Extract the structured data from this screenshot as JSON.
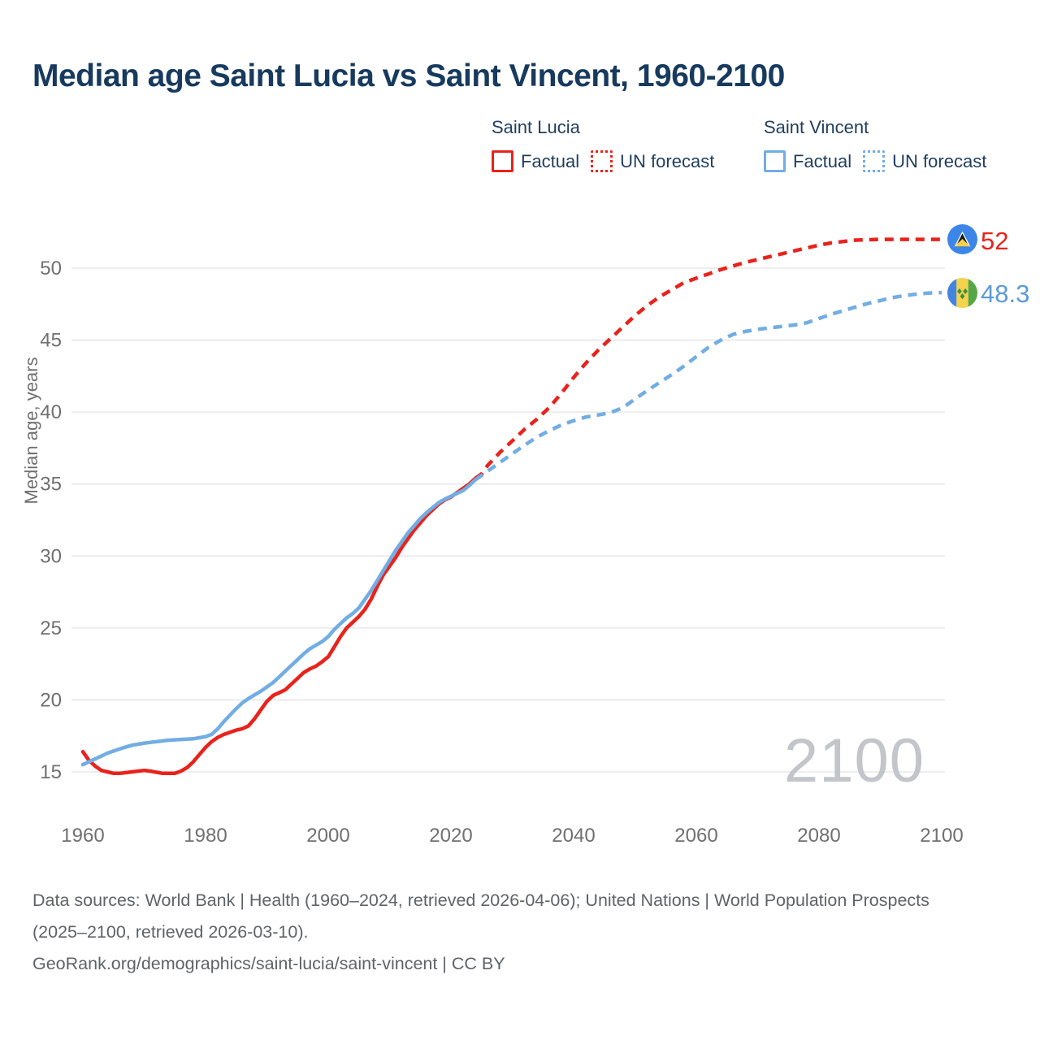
{
  "header": {
    "title": "Median age Saint Lucia vs Saint Vincent, 1960-2100"
  },
  "legend": {
    "groups": [
      {
        "label": "Saint Lucia",
        "color": "#e8231c",
        "items": [
          {
            "label": "Factual",
            "style": "solid"
          },
          {
            "label": "UN forecast",
            "style": "dotted"
          }
        ]
      },
      {
        "label": "Saint Vincent",
        "color": "#72ade3",
        "items": [
          {
            "label": "Factual",
            "style": "solid"
          },
          {
            "label": "UN forecast",
            "style": "dotted"
          }
        ]
      }
    ]
  },
  "chart_data": {
    "type": "line",
    "title": "Median age Saint Lucia vs Saint Vincent, 1960-2100",
    "xlabel": "",
    "ylabel": "Median age, years",
    "x_axis": {
      "min": 1960,
      "max": 2100,
      "ticks": [
        1960,
        1980,
        2000,
        2020,
        2040,
        2060,
        2080,
        2100
      ]
    },
    "y_axis": {
      "min": 15,
      "max": 50,
      "ticks": [
        15,
        20,
        25,
        30,
        35,
        40,
        45,
        50
      ]
    },
    "grid": "horizontal",
    "legend_position": "top-right",
    "watermark": "2100",
    "series": [
      {
        "name": "Saint Lucia — Factual",
        "color": "#e8231c",
        "style": "solid",
        "points": [
          [
            1960,
            16.4
          ],
          [
            1961,
            15.8
          ],
          [
            1962,
            15.4
          ],
          [
            1963,
            15.1
          ],
          [
            1964,
            15.0
          ],
          [
            1965,
            14.9
          ],
          [
            1966,
            14.9
          ],
          [
            1968,
            15.0
          ],
          [
            1970,
            15.1
          ],
          [
            1971,
            15.05
          ],
          [
            1973,
            14.9
          ],
          [
            1975,
            14.9
          ],
          [
            1976,
            15.05
          ],
          [
            1977,
            15.3
          ],
          [
            1978,
            15.7
          ],
          [
            1979,
            16.2
          ],
          [
            1980,
            16.7
          ],
          [
            1981,
            17.1
          ],
          [
            1982,
            17.4
          ],
          [
            1983,
            17.6
          ],
          [
            1984,
            17.75
          ],
          [
            1985,
            17.9
          ],
          [
            1986,
            18.0
          ],
          [
            1987,
            18.2
          ],
          [
            1988,
            18.7
          ],
          [
            1989,
            19.3
          ],
          [
            1990,
            19.9
          ],
          [
            1991,
            20.3
          ],
          [
            1992,
            20.5
          ],
          [
            1993,
            20.7
          ],
          [
            1994,
            21.1
          ],
          [
            1995,
            21.5
          ],
          [
            1996,
            21.9
          ],
          [
            1997,
            22.15
          ],
          [
            1998,
            22.35
          ],
          [
            1999,
            22.65
          ],
          [
            2000,
            23.0
          ],
          [
            2001,
            23.7
          ],
          [
            2002,
            24.4
          ],
          [
            2003,
            25.0
          ],
          [
            2004,
            25.4
          ],
          [
            2005,
            25.8
          ],
          [
            2006,
            26.3
          ],
          [
            2007,
            27.0
          ],
          [
            2008,
            27.9
          ],
          [
            2009,
            28.7
          ],
          [
            2010,
            29.3
          ],
          [
            2011,
            29.9
          ],
          [
            2012,
            30.6
          ],
          [
            2013,
            31.2
          ],
          [
            2014,
            31.8
          ],
          [
            2015,
            32.3
          ],
          [
            2016,
            32.8
          ],
          [
            2017,
            33.2
          ],
          [
            2018,
            33.6
          ],
          [
            2019,
            33.9
          ],
          [
            2020,
            34.1
          ],
          [
            2021,
            34.4
          ],
          [
            2022,
            34.7
          ],
          [
            2023,
            35.0
          ],
          [
            2024,
            35.4
          ]
        ]
      },
      {
        "name": "Saint Lucia — UN forecast",
        "color": "#e8231c",
        "style": "dashed",
        "end_label": "52",
        "points": [
          [
            2024,
            35.4
          ],
          [
            2025,
            35.7
          ],
          [
            2026,
            36.3
          ],
          [
            2028,
            37.2
          ],
          [
            2030,
            38.0
          ],
          [
            2032,
            38.8
          ],
          [
            2034,
            39.5
          ],
          [
            2036,
            40.3
          ],
          [
            2038,
            41.3
          ],
          [
            2040,
            42.4
          ],
          [
            2042,
            43.4
          ],
          [
            2044,
            44.3
          ],
          [
            2046,
            45.1
          ],
          [
            2048,
            45.9
          ],
          [
            2050,
            46.7
          ],
          [
            2052,
            47.4
          ],
          [
            2054,
            48.0
          ],
          [
            2056,
            48.5
          ],
          [
            2058,
            49.0
          ],
          [
            2060,
            49.3
          ],
          [
            2062,
            49.6
          ],
          [
            2064,
            49.9
          ],
          [
            2066,
            50.15
          ],
          [
            2068,
            50.4
          ],
          [
            2070,
            50.6
          ],
          [
            2072,
            50.8
          ],
          [
            2074,
            51.0
          ],
          [
            2076,
            51.2
          ],
          [
            2078,
            51.4
          ],
          [
            2080,
            51.6
          ],
          [
            2082,
            51.75
          ],
          [
            2084,
            51.85
          ],
          [
            2086,
            51.95
          ],
          [
            2090,
            52.0
          ],
          [
            2095,
            52.0
          ],
          [
            2100,
            52.0
          ]
        ]
      },
      {
        "name": "Saint Vincent — Factual",
        "color": "#72ade3",
        "style": "solid",
        "points": [
          [
            1960,
            15.5
          ],
          [
            1962,
            15.9
          ],
          [
            1964,
            16.3
          ],
          [
            1966,
            16.6
          ],
          [
            1968,
            16.85
          ],
          [
            1970,
            17.0
          ],
          [
            1972,
            17.1
          ],
          [
            1974,
            17.2
          ],
          [
            1976,
            17.25
          ],
          [
            1978,
            17.3
          ],
          [
            1980,
            17.45
          ],
          [
            1981,
            17.6
          ],
          [
            1982,
            18.0
          ],
          [
            1983,
            18.5
          ],
          [
            1984,
            18.95
          ],
          [
            1985,
            19.4
          ],
          [
            1986,
            19.8
          ],
          [
            1987,
            20.1
          ],
          [
            1988,
            20.35
          ],
          [
            1989,
            20.6
          ],
          [
            1990,
            20.9
          ],
          [
            1991,
            21.2
          ],
          [
            1992,
            21.6
          ],
          [
            1993,
            22.0
          ],
          [
            1994,
            22.4
          ],
          [
            1995,
            22.8
          ],
          [
            1996,
            23.2
          ],
          [
            1997,
            23.55
          ],
          [
            1998,
            23.8
          ],
          [
            1999,
            24.05
          ],
          [
            2000,
            24.4
          ],
          [
            2001,
            24.9
          ],
          [
            2002,
            25.3
          ],
          [
            2003,
            25.7
          ],
          [
            2004,
            26.0
          ],
          [
            2005,
            26.4
          ],
          [
            2006,
            27.0
          ],
          [
            2007,
            27.6
          ],
          [
            2008,
            28.3
          ],
          [
            2009,
            29.0
          ],
          [
            2010,
            29.7
          ],
          [
            2011,
            30.4
          ],
          [
            2012,
            31.0
          ],
          [
            2013,
            31.6
          ],
          [
            2014,
            32.1
          ],
          [
            2015,
            32.6
          ],
          [
            2016,
            33.0
          ],
          [
            2017,
            33.35
          ],
          [
            2018,
            33.7
          ],
          [
            2019,
            33.95
          ],
          [
            2020,
            34.15
          ],
          [
            2021,
            34.35
          ],
          [
            2022,
            34.55
          ],
          [
            2023,
            34.9
          ],
          [
            2024,
            35.3
          ]
        ]
      },
      {
        "name": "Saint Vincent — UN forecast",
        "color": "#72ade3",
        "style": "dashed",
        "end_label": "48.3",
        "points": [
          [
            2024,
            35.3
          ],
          [
            2025,
            35.6
          ],
          [
            2026,
            35.9
          ],
          [
            2028,
            36.5
          ],
          [
            2030,
            37.1
          ],
          [
            2032,
            37.7
          ],
          [
            2034,
            38.25
          ],
          [
            2036,
            38.7
          ],
          [
            2038,
            39.1
          ],
          [
            2040,
            39.4
          ],
          [
            2042,
            39.65
          ],
          [
            2044,
            39.8
          ],
          [
            2046,
            39.95
          ],
          [
            2048,
            40.3
          ],
          [
            2050,
            40.9
          ],
          [
            2052,
            41.5
          ],
          [
            2054,
            42.05
          ],
          [
            2056,
            42.6
          ],
          [
            2058,
            43.2
          ],
          [
            2060,
            43.85
          ],
          [
            2062,
            44.5
          ],
          [
            2064,
            45.0
          ],
          [
            2066,
            45.4
          ],
          [
            2068,
            45.6
          ],
          [
            2070,
            45.75
          ],
          [
            2072,
            45.85
          ],
          [
            2074,
            45.95
          ],
          [
            2076,
            46.05
          ],
          [
            2078,
            46.2
          ],
          [
            2080,
            46.5
          ],
          [
            2082,
            46.8
          ],
          [
            2084,
            47.05
          ],
          [
            2086,
            47.3
          ],
          [
            2088,
            47.55
          ],
          [
            2090,
            47.75
          ],
          [
            2092,
            47.95
          ],
          [
            2094,
            48.1
          ],
          [
            2096,
            48.2
          ],
          [
            2098,
            48.27
          ],
          [
            2100,
            48.3
          ]
        ]
      }
    ]
  },
  "end_markers": [
    {
      "flag": "saint-lucia-flag",
      "value_label": "52"
    },
    {
      "flag": "saint-vincent-flag",
      "value_label": "48.3"
    }
  ],
  "watermark": "2100",
  "footer": {
    "sources": "Data sources: World Bank | Health (1960–2024, retrieved 2026-04-06); United Nations | World Population Prospects (2025–2100, retrieved 2026-03-10).",
    "attribution": "GeoRank.org/demographics/saint-lucia/saint-vincent | CC BY"
  }
}
